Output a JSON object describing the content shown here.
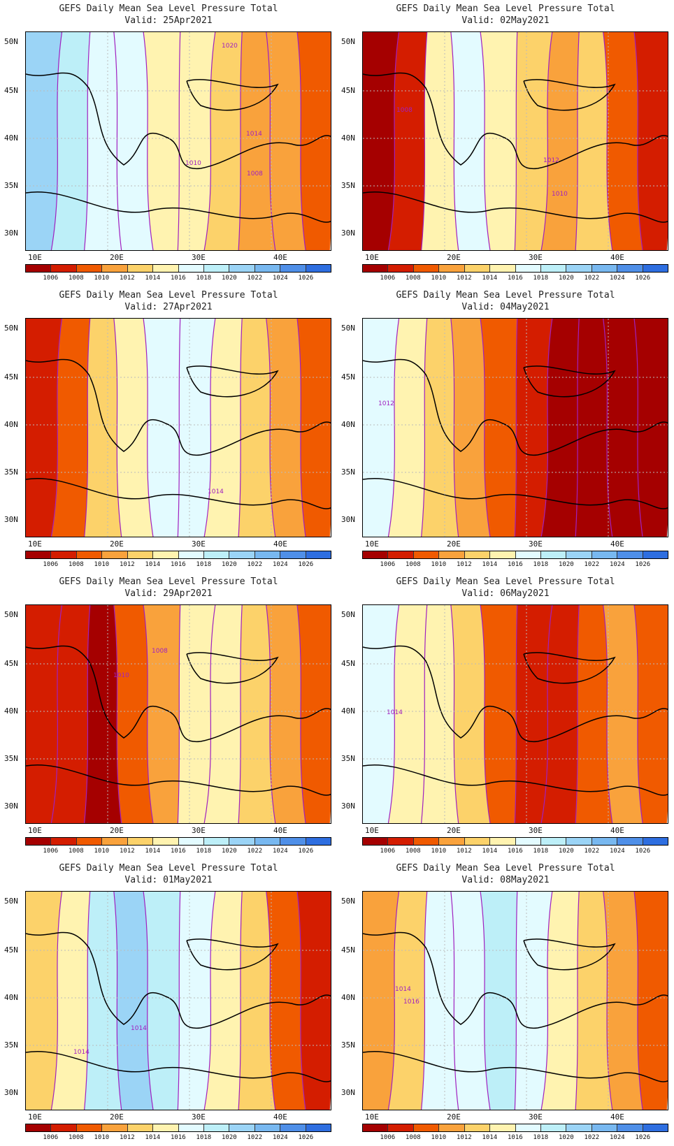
{
  "palette": [
    "#a50000",
    "#d41d00",
    "#f05a00",
    "#f9a23c",
    "#fcd26a",
    "#fff3b0",
    "#e3fbff",
    "#bdeff8",
    "#9bd4f6",
    "#78b8f0",
    "#4f8fe8",
    "#2e6ee0"
  ],
  "colorbar_labels": [
    "1006",
    "1008",
    "1010",
    "1012",
    "1014",
    "1016",
    "1018",
    "1020",
    "1022",
    "1024",
    "1026"
  ],
  "axes": {
    "lat_labels": [
      "50N",
      "45N",
      "40N",
      "35N",
      "30N"
    ],
    "lon_labels": [
      "10E",
      "20E",
      "30E",
      "40E"
    ]
  },
  "panels": [
    {
      "title": "GEFS Daily Mean Sea Level Pressure Total",
      "valid": "Valid: 25Apr2021",
      "levels": [
        8,
        7,
        6,
        6,
        5,
        5,
        4,
        3,
        3,
        2
      ],
      "contour_labels": [
        {
          "text": "1020"
        },
        {
          "text": "1014"
        },
        {
          "text": "1010"
        },
        {
          "text": "1008"
        }
      ]
    },
    {
      "title": "GEFS Daily Mean Sea Level Pressure Total",
      "valid": "Valid: 02May2021",
      "levels": [
        0,
        1,
        5,
        6,
        5,
        4,
        3,
        4,
        2,
        1
      ],
      "contour_labels": [
        {
          "text": "1008"
        },
        {
          "text": "1012"
        },
        {
          "text": "1010"
        }
      ]
    },
    {
      "title": "GEFS Daily Mean Sea Level Pressure Total",
      "valid": "Valid: 27Apr2021",
      "levels": [
        1,
        2,
        4,
        5,
        6,
        6,
        5,
        4,
        3,
        2
      ],
      "contour_labels": [
        {
          "text": "1014"
        }
      ]
    },
    {
      "title": "GEFS Daily Mean Sea Level Pressure Total",
      "valid": "Valid: 04May2021",
      "levels": [
        6,
        5,
        4,
        3,
        2,
        1,
        0,
        0,
        0,
        0
      ],
      "contour_labels": [
        {
          "text": "1012"
        }
      ]
    },
    {
      "title": "GEFS Daily Mean Sea Level Pressure Total",
      "valid": "Valid: 29Apr2021",
      "levels": [
        1,
        1,
        0,
        2,
        3,
        5,
        5,
        4,
        3,
        2
      ],
      "contour_labels": [
        {
          "text": "1008"
        },
        {
          "text": "1010"
        }
      ]
    },
    {
      "title": "GEFS Daily Mean Sea Level Pressure Total",
      "valid": "Valid: 06May2021",
      "levels": [
        6,
        5,
        5,
        4,
        2,
        1,
        1,
        2,
        3,
        2
      ],
      "contour_labels": [
        {
          "text": "1014"
        }
      ]
    },
    {
      "title": "GEFS Daily Mean Sea Level Pressure Total",
      "valid": "Valid: 01May2021",
      "levels": [
        4,
        5,
        7,
        8,
        7,
        6,
        5,
        4,
        2,
        1
      ],
      "contour_labels": [
        {
          "text": "1014"
        },
        {
          "text": "1014"
        }
      ]
    },
    {
      "title": "GEFS Daily Mean Sea Level Pressure Total",
      "valid": "Valid: 08May2021",
      "levels": [
        3,
        4,
        6,
        6,
        7,
        6,
        5,
        4,
        3,
        2
      ],
      "contour_labels": [
        {
          "text": "1014"
        },
        {
          "text": "1016"
        }
      ]
    }
  ]
}
